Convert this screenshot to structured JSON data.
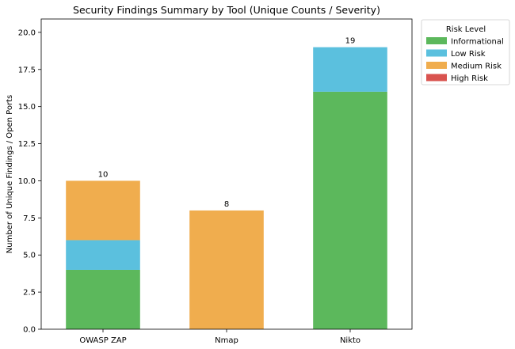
{
  "chart_data": {
    "type": "bar",
    "stacked": true,
    "title": "Security Findings Summary by Tool (Unique Counts / Severity)",
    "xlabel": "",
    "ylabel": "Number of Unique Findings / Open Ports",
    "categories": [
      "OWASP ZAP",
      "Nmap",
      "Nikto"
    ],
    "ylim": [
      0,
      20.9
    ],
    "yticks": [
      0.0,
      2.5,
      5.0,
      7.5,
      10.0,
      12.5,
      15.0,
      17.5,
      20.0
    ],
    "ytick_labels": [
      "0.0",
      "2.5",
      "5.0",
      "7.5",
      "10.0",
      "12.5",
      "15.0",
      "17.5",
      "20.0"
    ],
    "series": [
      {
        "name": "Informational",
        "color": "#5cb85c",
        "values": [
          4,
          0,
          16
        ]
      },
      {
        "name": "Low Risk",
        "color": "#5bc0de",
        "values": [
          2,
          0,
          3
        ]
      },
      {
        "name": "Medium Risk",
        "color": "#f0ad4e",
        "values": [
          4,
          8,
          0
        ]
      },
      {
        "name": "High Risk",
        "color": "#d9534f",
        "values": [
          0,
          0,
          0
        ]
      }
    ],
    "totals": [
      10,
      8,
      19
    ],
    "legend": {
      "title": "Risk Level",
      "placement": "outside-top-right"
    },
    "grid": false
  }
}
